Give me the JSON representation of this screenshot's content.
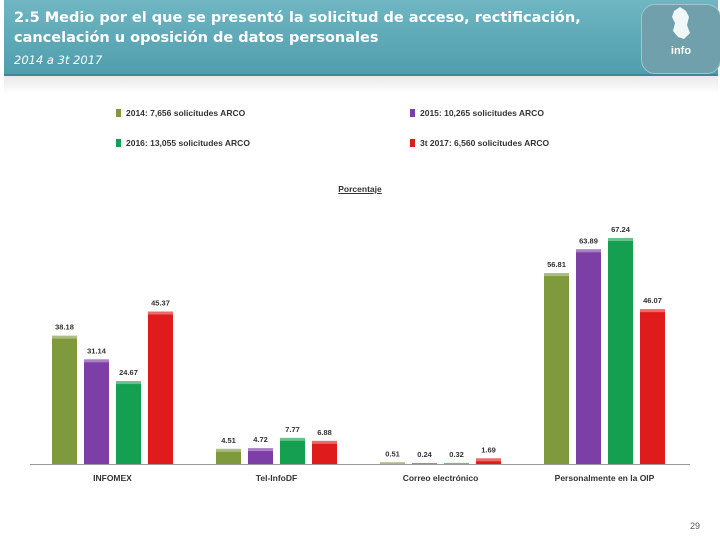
{
  "header": {
    "title": "2.5 Medio por el que se presentó  la solicitud de acceso, rectificación, cancelación u oposición de datos personales",
    "subtitle": "2014 a 3t 2017",
    "logo_text": "info"
  },
  "colors": {
    "header_bg": "#5aa8b6",
    "series": [
      "#7f9a3c",
      "#7b3fa6",
      "#14a050",
      "#e01b1b"
    ]
  },
  "chart_data": {
    "type": "bar",
    "title": "Porcentaje",
    "categories": [
      "INFOMEX",
      "Tel-InfoDF",
      "Correo electrónico",
      "Personalmente en la OIP"
    ],
    "series": [
      {
        "name": "2014: 7,656 solicitudes ARCO",
        "values": [
          38.18,
          4.51,
          0.51,
          56.81
        ]
      },
      {
        "name": "2015: 10,265 solicitudes ARCO",
        "values": [
          31.14,
          4.72,
          0.24,
          63.89
        ]
      },
      {
        "name": "2016: 13,055 solicitudes ARCO",
        "values": [
          24.67,
          7.77,
          0.32,
          67.24
        ]
      },
      {
        "name": "3t 2017: 6,560 solicitudes ARCO",
        "values": [
          45.37,
          6.88,
          1.69,
          46.07
        ]
      }
    ],
    "ylim": [
      0,
      70
    ],
    "legend_position": "top",
    "grid": false,
    "xlabel": "",
    "ylabel": ""
  },
  "page_number": "29"
}
